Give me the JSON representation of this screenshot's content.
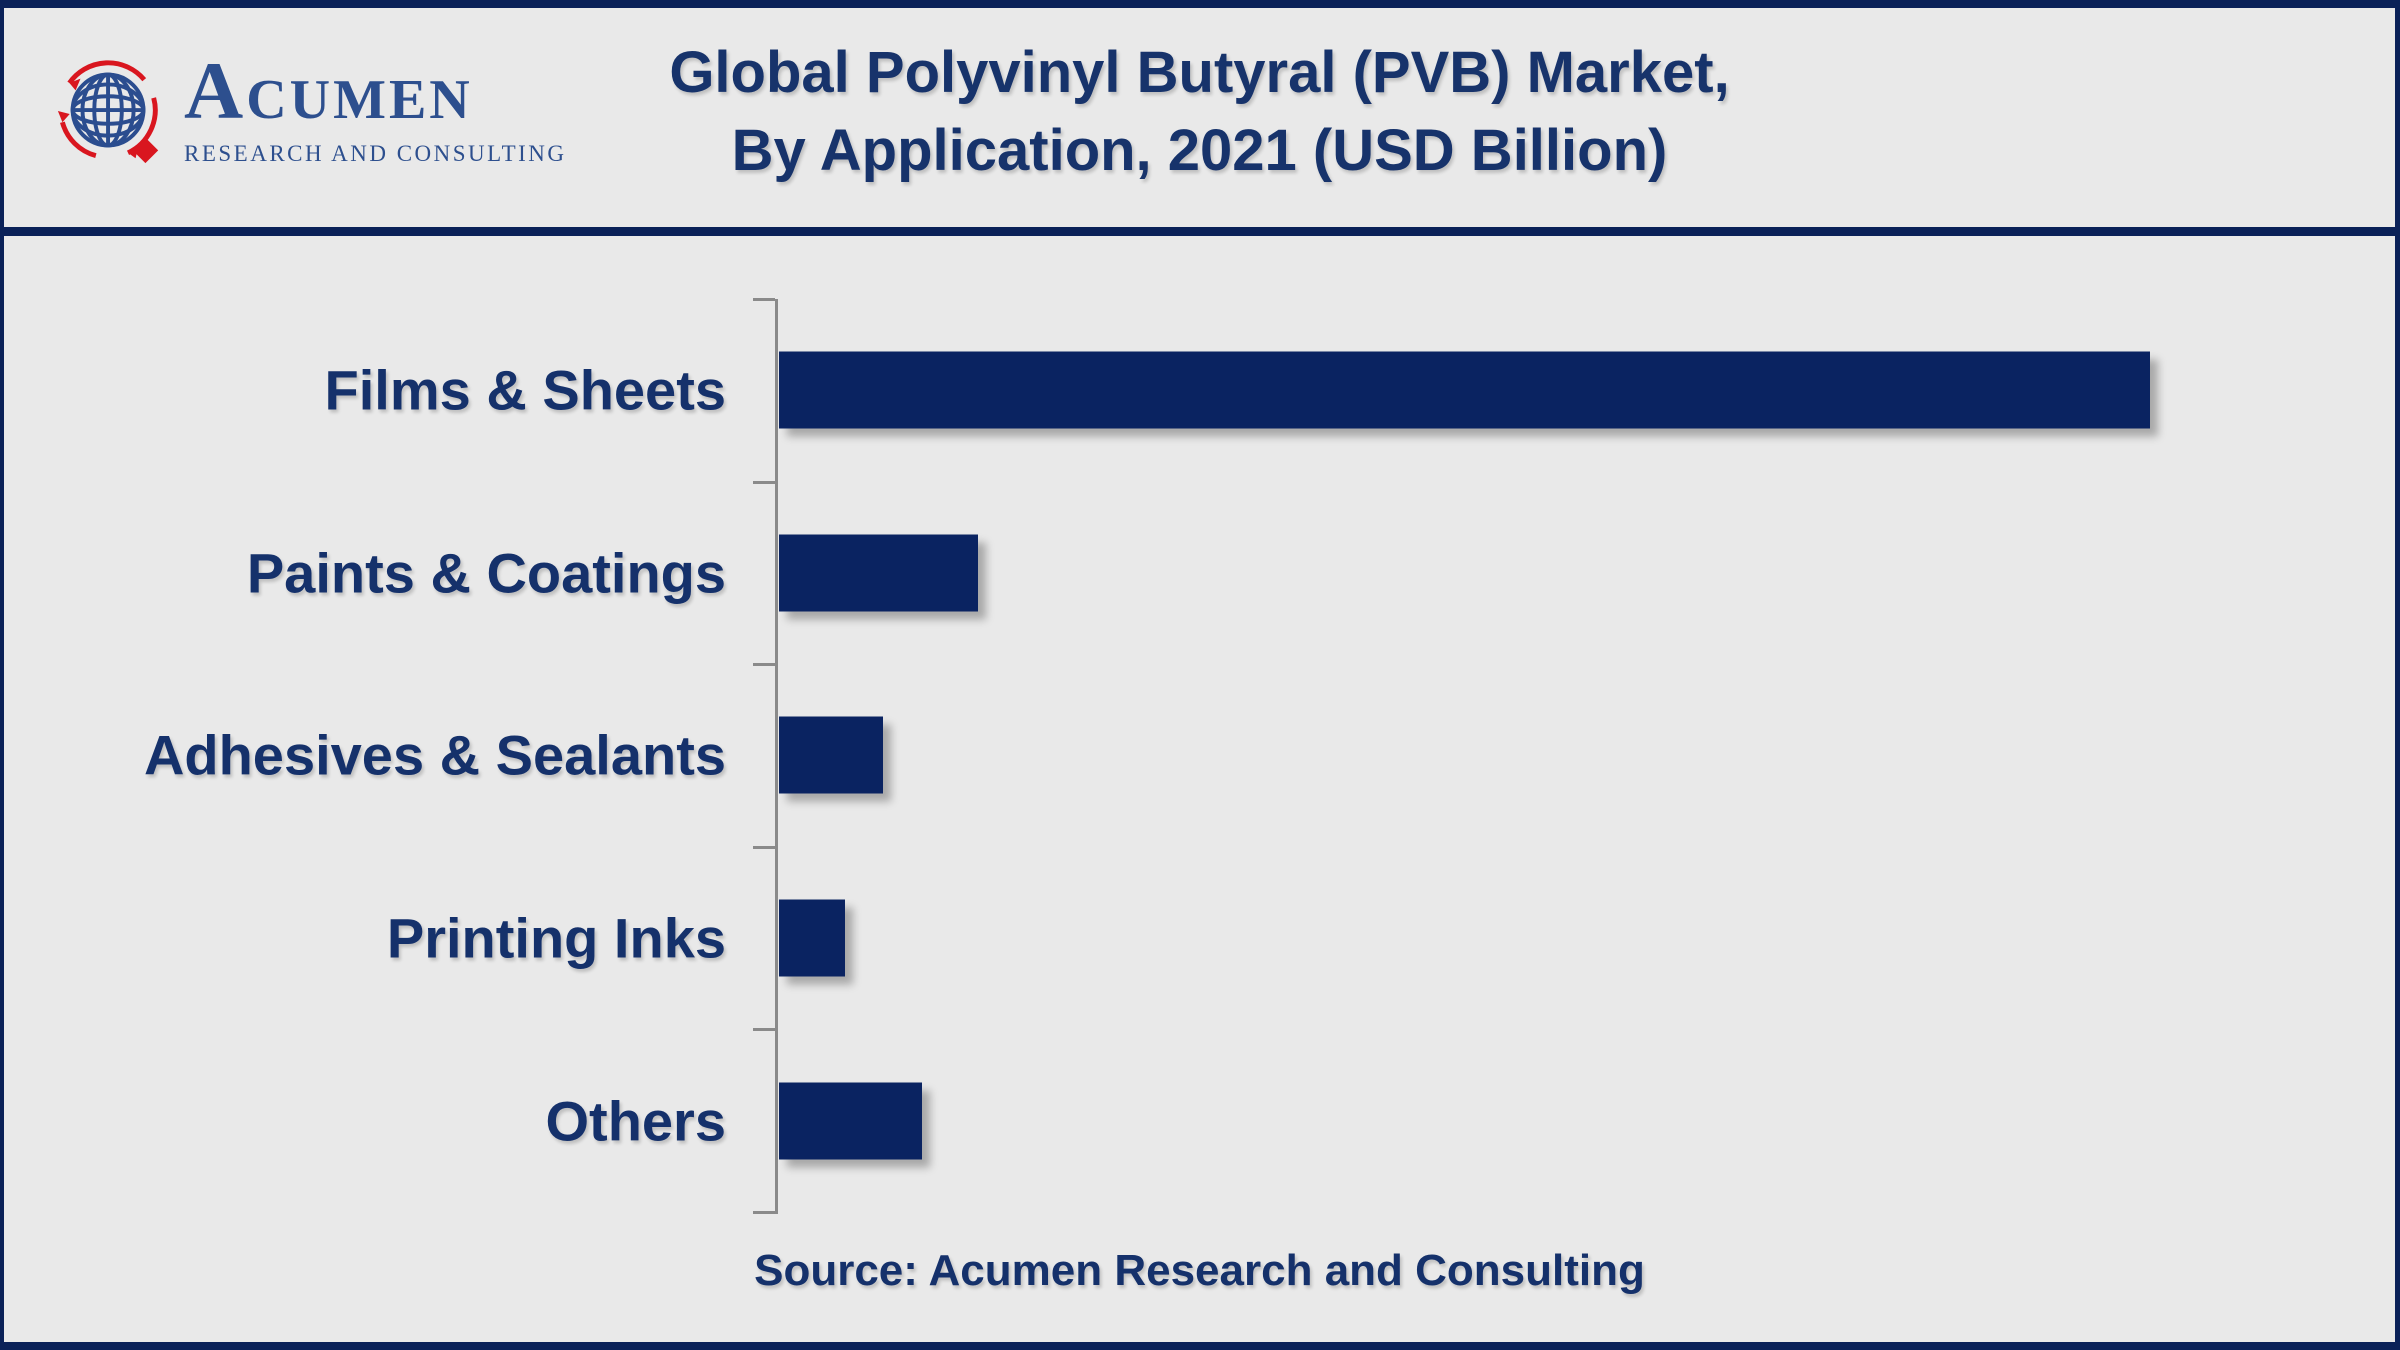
{
  "page": {
    "background_color": "#e9e9e9",
    "border_color": "#0a2158"
  },
  "header": {
    "logo": {
      "brand": "ACUMEN",
      "tagline": "RESEARCH AND CONSULTING",
      "globe_icon": "globe-with-red-orbit-arrows-and-red-diamond",
      "brand_color": "#2d4f8e",
      "accent_red": "#d9161f"
    },
    "title_line1": "Global Polyvinyl Butyral (PVB) Market,",
    "title_line2": "By Application, 2021 (USD Billion)",
    "title_color": "#17336b"
  },
  "chart_data": {
    "type": "bar",
    "orientation": "horizontal",
    "title": "Global Polyvinyl Butyral (PVB) Market, By Application, 2021 (USD Billion)",
    "value_unit": "USD Billion",
    "categories": [
      "Films & Sheets",
      "Paints & Coatings",
      "Adhesives & Sealants",
      "Printing Inks",
      "Others"
    ],
    "values_pct_of_max": [
      100,
      14.5,
      7.6,
      4.8,
      10.4
    ],
    "value_axis_labels_shown": false,
    "gridlines": false,
    "legend": "none",
    "bar_color": "#0a2361",
    "axis_color": "#8a8a8a",
    "label_color": "#15316b"
  },
  "footer": {
    "source": "Source: Acumen Research and Consulting"
  }
}
